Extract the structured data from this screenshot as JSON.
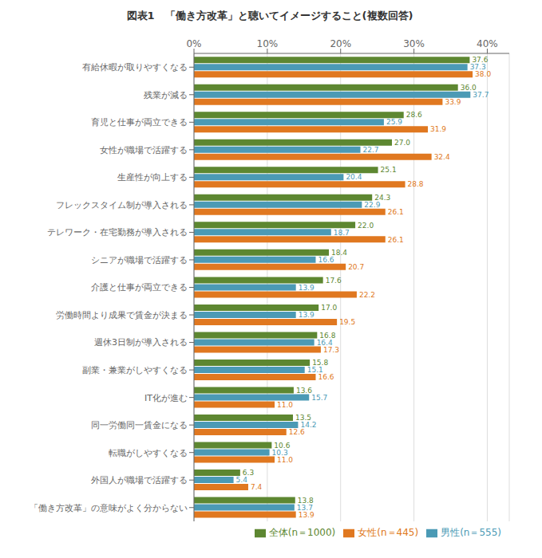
{
  "chart_data": {
    "type": "bar",
    "orientation": "horizontal",
    "title": "図表1　「働き方改革」と聴いてイメージすること(複数回答)",
    "categories": [
      "有給休暇が取りやすくなる",
      "残業が減る",
      "育児と仕事が両立できる",
      "女性が職場で活躍する",
      "生産性が向上する",
      "フレックスタイム制が導入される",
      "テレワーク・在宅勤務が導入される",
      "シニアが職場で活躍する",
      "介護と仕事が両立できる",
      "労働時間より成果で賃金が決まる",
      "週休3日制が導入される",
      "副業・兼業がしやすくなる",
      "IT化が進む",
      "同一労働同一賃金になる",
      "転職がしやすくなる",
      "外国人が職場で活躍する",
      "「働き方改革」の意味がよく分からない"
    ],
    "series": [
      {
        "name": "全体(n＝1000)",
        "color": "#5d8731",
        "values": [
          37.6,
          36.0,
          28.6,
          27.0,
          25.1,
          24.3,
          22.0,
          18.4,
          17.6,
          17.0,
          16.8,
          15.8,
          13.6,
          13.5,
          10.6,
          6.3,
          13.8
        ],
        "value_labels": [
          "37.6",
          "36.0",
          "28.6",
          "27.0",
          "25.1",
          "24.3",
          "22.0",
          "18.4",
          "17.6",
          "17.0",
          "16.8",
          "15.8",
          "13.6",
          "13.5",
          "10.6",
          "6.3",
          "13.8"
        ]
      },
      {
        "name": "男性(n＝555)",
        "color": "#4b9ab5",
        "values": [
          37.3,
          37.7,
          25.9,
          22.7,
          20.4,
          22.9,
          18.7,
          16.6,
          13.9,
          13.9,
          16.4,
          15.1,
          15.7,
          14.2,
          10.3,
          5.4,
          13.7
        ],
        "value_labels": [
          "37.3",
          "37.7",
          "25.9",
          "22.7",
          "20.4",
          "22.9",
          "18.7",
          "16.6",
          "13.9",
          "13.9",
          "16.4",
          "15.1",
          "15.7",
          "14.2",
          "10.3",
          "5.4",
          "13.7"
        ]
      },
      {
        "name": "女性(n＝445)",
        "color": "#e07820",
        "values": [
          38.0,
          33.9,
          31.9,
          32.4,
          28.8,
          26.1,
          26.1,
          20.7,
          22.2,
          19.5,
          17.3,
          16.6,
          11.0,
          12.6,
          11.0,
          7.4,
          13.9
        ],
        "value_labels": [
          "38.0",
          "33.9",
          "31.9",
          "32.4",
          "28.8",
          "26.1",
          "26.1",
          "20.7",
          "22.2",
          "19.5",
          "17.3",
          "16.6",
          "11.0",
          "12.6",
          "11.0",
          "7.4",
          "13.9"
        ]
      }
    ],
    "xlim": [
      0,
      43
    ],
    "xticks": [
      {
        "value": 0,
        "label": "0%"
      },
      {
        "value": 10,
        "label": "10%"
      },
      {
        "value": 20,
        "label": "20%"
      },
      {
        "value": 30,
        "label": "30%"
      },
      {
        "value": 40,
        "label": "40%"
      }
    ],
    "grid": true,
    "legend": "lower right",
    "data_labels": true
  }
}
